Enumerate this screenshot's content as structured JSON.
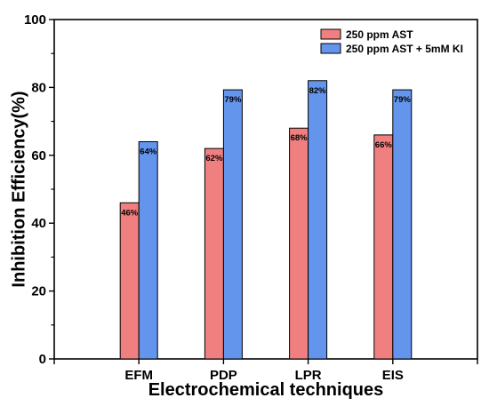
{
  "chart_data": {
    "type": "bar",
    "title": "",
    "xlabel": "Electrochemical techniques",
    "ylabel": "Inhibition Efficiency(%)",
    "ylim": [
      0,
      100
    ],
    "yticks": [
      "0",
      "20",
      "40",
      "60",
      "80",
      "100"
    ],
    "categories": [
      "EFM",
      "PDP",
      "LPR",
      "EIS"
    ],
    "series": [
      {
        "name": "250 ppm AST",
        "color": "#f08080",
        "values": [
          46,
          62,
          68,
          66
        ],
        "labels": [
          "46%",
          "62%",
          "68%",
          "66%"
        ]
      },
      {
        "name": "250 ppm AST + 5mM KI",
        "color": "#6495ed",
        "values": [
          64,
          79.3,
          82,
          79.3
        ],
        "labels": [
          "64%",
          "79%",
          "82%",
          "79%"
        ]
      }
    ],
    "grid": false,
    "legend_position": "top-right"
  }
}
